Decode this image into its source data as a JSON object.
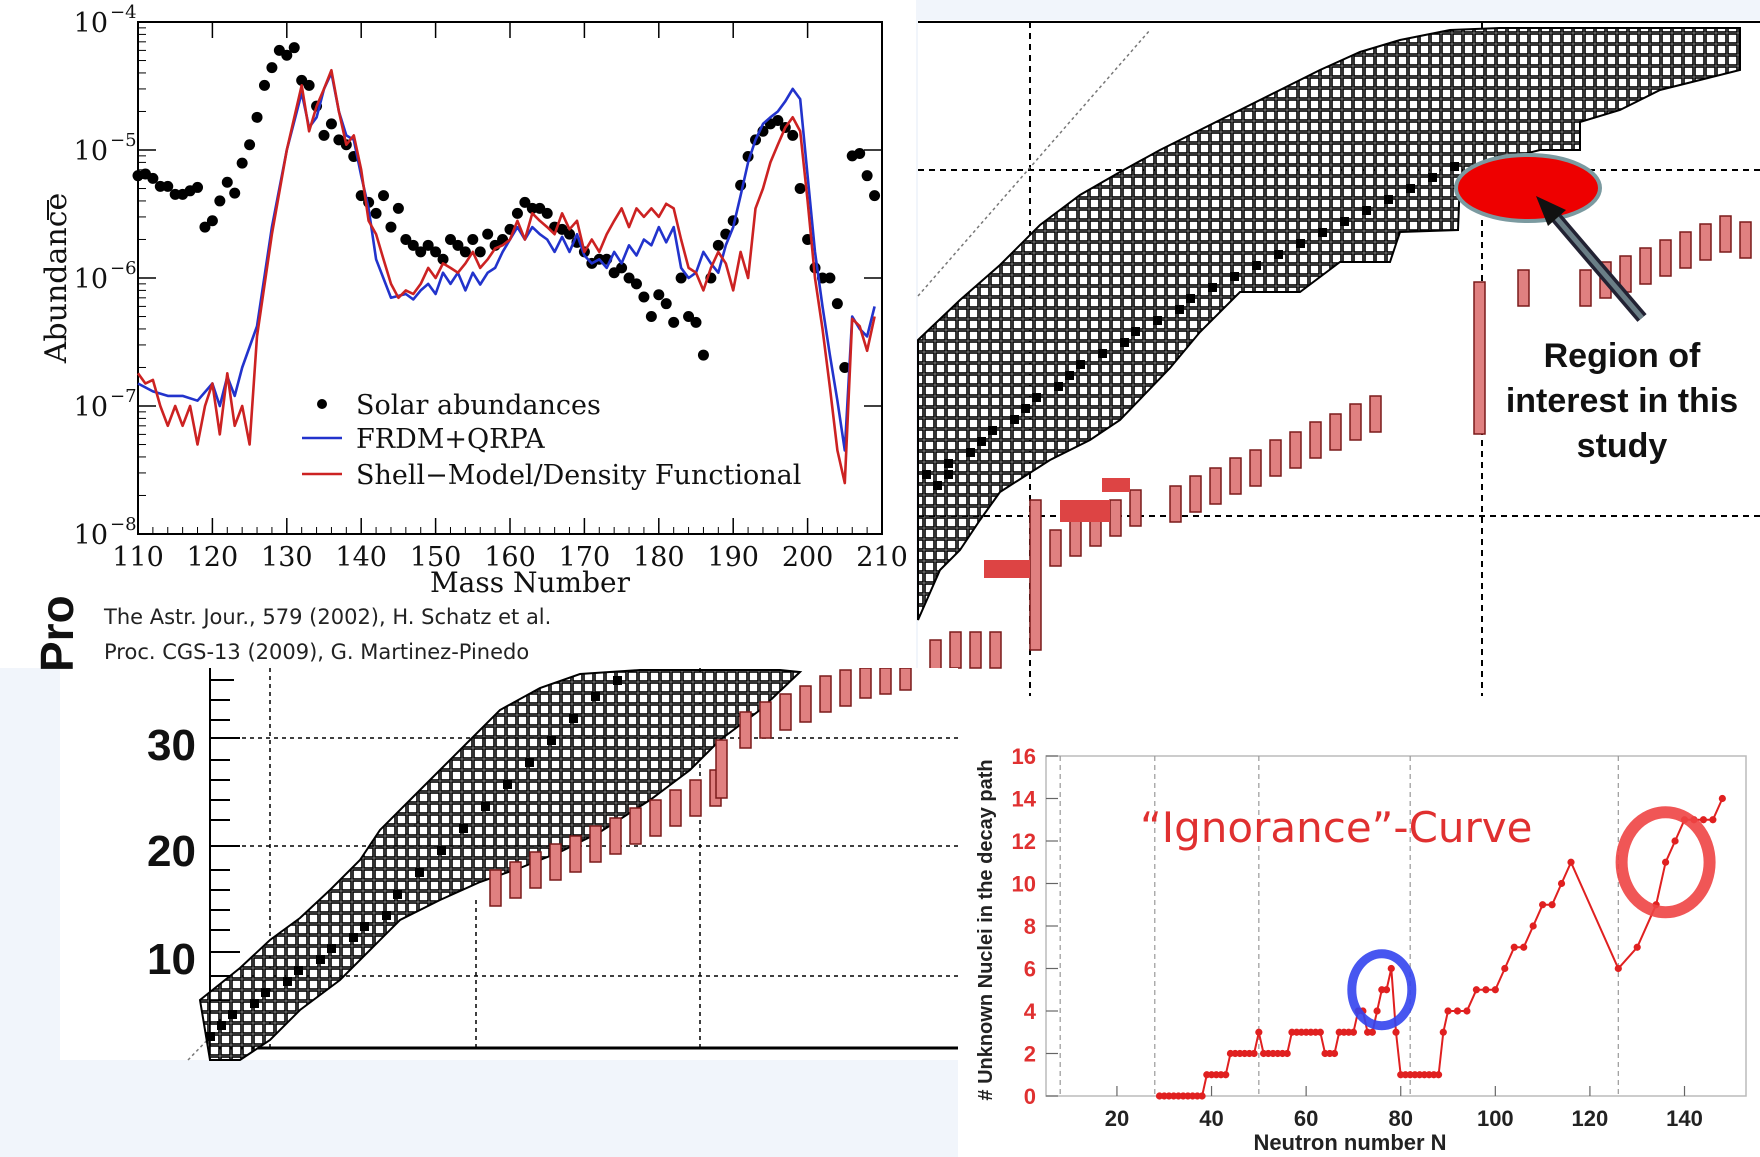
{
  "abundance_chart": {
    "title": "",
    "ylabel": "Abundance",
    "xlabel": "Mass Number",
    "legend": [
      "Solar abundances",
      "FRDM+QRPA",
      "Shell−Model/Density Functional"
    ],
    "x_ticks": [
      "110",
      "120",
      "130",
      "140",
      "150",
      "160",
      "170",
      "180",
      "190",
      "200",
      "210"
    ],
    "y_ticks": [
      {
        "base": "10",
        "exp": "−4"
      },
      {
        "base": "10",
        "exp": "−5"
      },
      {
        "base": "10",
        "exp": "−6"
      },
      {
        "base": "10",
        "exp": "−7"
      },
      {
        "base": "10",
        "exp": "−8"
      }
    ],
    "citations": [
      "The Astr. Jour., 579  (2002), H. Schatz et al.",
      "Proc. CGS-13 (2009), G. Martinez-Pinedo"
    ]
  },
  "nuclide_chart": {
    "yaxis_label_visible": "Pro",
    "z_ticks": [
      "30",
      "20",
      "10"
    ],
    "annotation": [
      "Region of",
      "interest in this",
      "study"
    ]
  },
  "ignorance_chart": {
    "title": "“Ignorance”-Curve",
    "xlabel": "Neutron number N",
    "ylabel": "# Unknown Nuclei in the decay path",
    "x_ticks": [
      "20",
      "40",
      "60",
      "80",
      "100",
      "120",
      "140"
    ],
    "y_ticks": [
      "0",
      "2",
      "4",
      "6",
      "8",
      "10",
      "12",
      "14",
      "16"
    ]
  },
  "chart_data": [
    {
      "type": "scatter",
      "title": "",
      "xlabel": "Mass Number",
      "ylabel": "Abundance",
      "xlim": [
        110,
        210
      ],
      "ylim": [
        1e-08,
        0.0001
      ],
      "yscale": "log",
      "legend_placement": "bottom-center",
      "series": [
        {
          "name": "Solar abundances",
          "style": "points",
          "color": "#000000",
          "x": [
            110,
            111,
            112,
            113,
            114,
            115,
            116,
            117,
            118,
            119,
            120,
            121,
            122,
            123,
            124,
            125,
            126,
            127,
            128,
            129,
            130,
            131,
            132,
            133,
            134,
            135,
            136,
            137,
            138,
            139,
            140,
            141,
            142,
            143,
            144,
            145,
            146,
            147,
            148,
            149,
            150,
            151,
            152,
            153,
            154,
            155,
            156,
            157,
            158,
            159,
            160,
            161,
            162,
            163,
            164,
            165,
            166,
            167,
            168,
            169,
            170,
            171,
            172,
            173,
            174,
            175,
            176,
            177,
            178,
            179,
            180,
            181,
            182,
            183,
            184,
            185,
            186,
            187,
            188,
            189,
            190,
            191,
            192,
            193,
            194,
            195,
            196,
            197,
            198,
            199,
            200,
            201,
            202,
            203,
            204,
            205,
            206,
            207,
            208,
            209
          ],
          "y": [
            6.3e-06,
            6.5e-06,
            6e-06,
            5.2e-06,
            5.2e-06,
            4.5e-06,
            4.5e-06,
            4.8e-06,
            5.1e-06,
            2.5e-06,
            2.8e-06,
            4e-06,
            5.6e-06,
            4.6e-06,
            7.9e-06,
            1.1e-05,
            1.8e-05,
            3.2e-05,
            4.4e-05,
            6e-05,
            5.5e-05,
            6.3e-05,
            3.5e-05,
            3.2e-05,
            2.2e-05,
            1.3e-05,
            1.6e-05,
            1.2e-05,
            1.1e-05,
            8.9e-06,
            4.4e-06,
            3.9e-06,
            3.2e-06,
            4.4e-06,
            2.5e-06,
            3.5e-06,
            2e-06,
            1.8e-06,
            1.6e-06,
            1.8e-06,
            1.6e-06,
            1.4e-06,
            2e-06,
            1.8e-06,
            1.6e-06,
            2e-06,
            1.6e-06,
            2.2e-06,
            1.8e-06,
            2e-06,
            2.4e-06,
            3.2e-06,
            3.9e-06,
            3.5e-06,
            3.5e-06,
            3.2e-06,
            2.5e-06,
            2.4e-06,
            2.2e-06,
            1.9e-06,
            1.6e-06,
            1.3e-06,
            1.4e-06,
            1.4e-06,
            1.1e-06,
            1.2e-06,
            1e-06,
            9e-07,
            7.1e-07,
            5e-07,
            7.4e-07,
            6.3e-07,
            4.5e-07,
            1e-06,
            5e-07,
            4.5e-07,
            2.5e-07,
            1e-06,
            1.8e-06,
            2.2e-06,
            2.8e-06,
            5.3e-06,
            8.9e-06,
            1.2e-05,
            1.4e-05,
            1.6e-05,
            1.7e-05,
            1.5e-05,
            1.3e-05,
            5e-06,
            2e-06,
            1.2e-06,
            1e-06,
            1e-06,
            6.3e-07,
            2e-07,
            9e-06,
            9.4e-06,
            6.3e-06,
            4.4e-06
          ]
        },
        {
          "name": "FRDM+QRPA",
          "style": "line",
          "color": "#2233cc",
          "x": [
            110,
            112,
            114,
            116,
            118,
            120,
            121,
            122,
            123,
            124,
            126,
            128,
            130,
            132,
            133,
            134,
            135,
            136,
            137,
            138,
            139,
            140,
            141,
            142,
            144,
            146,
            147,
            148,
            149,
            150,
            151,
            152,
            153,
            154,
            155,
            156,
            157,
            158,
            159,
            160,
            161,
            162,
            163,
            164,
            165,
            166,
            167,
            168,
            169,
            170,
            171,
            172,
            173,
            174,
            175,
            176,
            177,
            178,
            179,
            180,
            181,
            182,
            183,
            184,
            185,
            186,
            187,
            188,
            189,
            190,
            191,
            192,
            193,
            194,
            195,
            196,
            197,
            198,
            199,
            200,
            201,
            202,
            203,
            204,
            205,
            206,
            207,
            208,
            209
          ],
          "y": [
            1.5e-07,
            1.3e-07,
            1.2e-07,
            1.2e-07,
            1.1e-07,
            1.5e-07,
            1e-07,
            1.7e-07,
            1.2e-07,
            2e-07,
            4.2e-07,
            2.5e-06,
            1e-05,
            2.8e-05,
            1.5e-05,
            1.8e-05,
            3e-05,
            4e-05,
            2e-05,
            1.3e-05,
            1.2e-05,
            6.3e-06,
            3.5e-06,
            1.4e-06,
            7e-07,
            7.5e-07,
            6.8e-07,
            8e-07,
            9e-07,
            7.5e-07,
            1.1e-06,
            9e-07,
            1.1e-06,
            8e-07,
            1.1e-06,
            8.9e-07,
            1.1e-06,
            1.2e-06,
            1.6e-06,
            2e-06,
            2.5e-06,
            2e-06,
            2.5e-06,
            2.2e-06,
            2e-06,
            1.6e-06,
            2.1e-06,
            1.6e-06,
            2.2e-06,
            1.5e-06,
            1.3e-06,
            1.4e-06,
            1.2e-06,
            1.6e-06,
            1.3e-06,
            1.8e-06,
            1.5e-06,
            2e-06,
            1.8e-06,
            2.5e-06,
            1.9e-06,
            2.5e-06,
            1.2e-06,
            1e-06,
            1.1e-06,
            1.6e-06,
            1.3e-06,
            1.1e-06,
            1.8e-06,
            2.5e-06,
            4.4e-06,
            8e-06,
            1.2e-05,
            1.6e-05,
            1.8e-05,
            2e-05,
            2.4e-05,
            3e-05,
            2.5e-05,
            6.3e-06,
            1.6e-06,
            6e-07,
            2.5e-07,
            1.1e-07,
            4.5e-08,
            5e-07,
            4e-07,
            3.5e-07,
            6e-07
          ]
        },
        {
          "name": "Shell−Model/Density Functional",
          "style": "line",
          "color": "#cc2222",
          "x": [
            110,
            111,
            112,
            113,
            114,
            115,
            116,
            117,
            118,
            119,
            120,
            121,
            122,
            123,
            124,
            125,
            126,
            128,
            130,
            132,
            133,
            134,
            135,
            136,
            137,
            138,
            139,
            140,
            141,
            142,
            143,
            144,
            145,
            146,
            147,
            148,
            149,
            150,
            151,
            152,
            153,
            154,
            155,
            156,
            157,
            158,
            159,
            160,
            161,
            162,
            163,
            164,
            165,
            166,
            167,
            168,
            169,
            170,
            171,
            172,
            173,
            174,
            175,
            176,
            177,
            178,
            179,
            180,
            181,
            182,
            183,
            184,
            185,
            186,
            187,
            188,
            189,
            190,
            191,
            192,
            193,
            194,
            195,
            196,
            197,
            198,
            199,
            200,
            201,
            202,
            203,
            204,
            205,
            206,
            207,
            208,
            209
          ],
          "y": [
            1.8e-07,
            1.5e-07,
            1.6e-07,
            1e-07,
            7e-08,
            1e-07,
            7e-08,
            1e-07,
            5e-08,
            1e-07,
            1.5e-07,
            6e-08,
            1.8e-07,
            7e-08,
            1e-07,
            5e-08,
            3.5e-07,
            2.2e-06,
            1e-05,
            3.2e-05,
            1.4e-05,
            2.2e-05,
            3e-05,
            4.2e-05,
            2e-05,
            1.1e-05,
            1.3e-05,
            7e-06,
            2.8e-06,
            2.2e-06,
            1.4e-06,
            9e-07,
            7e-07,
            8e-07,
            7.5e-07,
            9e-07,
            1.2e-06,
            1e-06,
            1.3e-06,
            1.2e-06,
            1.1e-06,
            1.3e-06,
            1.6e-06,
            1.2e-06,
            1.4e-06,
            1.7e-06,
            1.8e-06,
            2e-06,
            2.8e-06,
            2e-06,
            3.2e-06,
            2.8e-06,
            2.5e-06,
            2.2e-06,
            3.2e-06,
            2.4e-06,
            2.8e-06,
            1.6e-06,
            2e-06,
            1.6e-06,
            2.2e-06,
            2.8e-06,
            3.5e-06,
            2.5e-06,
            3.5e-06,
            3e-06,
            3.5e-06,
            3e-06,
            3.8e-06,
            3.5e-06,
            2e-06,
            1.2e-06,
            1.1e-06,
            8e-07,
            1.2e-06,
            1.6e-06,
            1.3e-06,
            8e-07,
            1.6e-06,
            1e-06,
            3.5e-06,
            5e-06,
            8e-06,
            1.1e-05,
            1.5e-05,
            1.8e-05,
            1.4e-05,
            4e-06,
            1e-06,
            4e-07,
            1.4e-07,
            4.5e-08,
            2.5e-08,
            4.8e-07,
            4.2e-07,
            2.7e-07,
            5e-07
          ]
        }
      ]
    },
    {
      "type": "line",
      "title": "“Ignorance”-Curve",
      "xlabel": "Neutron number N",
      "ylabel": "# Unknown Nuclei in the decay path",
      "xlim": [
        5,
        153
      ],
      "ylim": [
        0,
        16
      ],
      "grid": true,
      "color": "#e02020",
      "x": [
        29,
        30,
        31,
        32,
        33,
        34,
        35,
        36,
        37,
        38,
        39,
        40,
        41,
        42,
        43,
        44,
        45,
        46,
        47,
        48,
        49,
        50,
        51,
        52,
        53,
        54,
        55,
        56,
        57,
        58,
        59,
        60,
        61,
        62,
        63,
        64,
        65,
        66,
        67,
        68,
        69,
        70,
        71,
        72,
        73,
        74,
        75,
        76,
        77,
        78,
        79,
        80,
        81,
        82,
        83,
        84,
        85,
        86,
        87,
        88,
        89,
        90,
        92,
        94,
        96,
        98,
        100,
        102,
        104,
        106,
        108,
        110,
        112,
        114,
        116,
        126,
        130,
        134,
        136,
        138,
        140,
        142,
        144,
        146,
        148
      ],
      "y": [
        0,
        0,
        0,
        0,
        0,
        0,
        0,
        0,
        0,
        0,
        1,
        1,
        1,
        1,
        1,
        2,
        2,
        2,
        2,
        2,
        2,
        3,
        2,
        2,
        2,
        2,
        2,
        2,
        3,
        3,
        3,
        3,
        3,
        3,
        3,
        2,
        2,
        2,
        3,
        3,
        3,
        3,
        4,
        4,
        3,
        3,
        4,
        5,
        5,
        6,
        3,
        1,
        1,
        1,
        1,
        1,
        1,
        1,
        1,
        1,
        3,
        4,
        4,
        4,
        5,
        5,
        5,
        6,
        7,
        7,
        8,
        9,
        9,
        10,
        11,
        6,
        7,
        9,
        11,
        12,
        13,
        13,
        13,
        13,
        14
      ],
      "highlights": [
        {
          "color": "#3344ee",
          "x": 76,
          "y": 5
        },
        {
          "color": "#ee4444",
          "x": 136,
          "y": 11
        }
      ]
    }
  ]
}
